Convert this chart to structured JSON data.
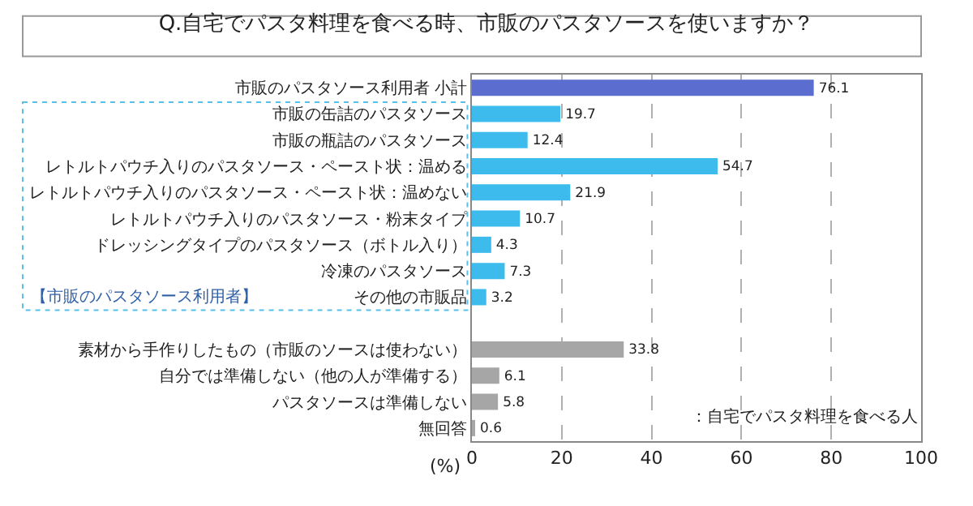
{
  "chart_data": {
    "type": "bar",
    "orientation": "horizontal",
    "title": "Q.自宅でパスタ料理を食べる時、市販のパスタソースを使いますか？",
    "categories": [
      "市販のパスタソース利用者 小計",
      "市販の缶詰のパスタソース",
      "市販の瓶詰のパスタソース",
      "レトルトパウチ入りのパスタソース・ペースト状：温める",
      "レトルトパウチ入りのパスタソース・ペースト状：温めない",
      "レトルトパウチ入りのパスタソース・粉末タイプ",
      "ドレッシングタイプのパスタソース（ボトル入り）",
      "冷凍のパスタソース",
      "その他の市販品",
      null,
      "素材から手作りしたもの（市販のソースは使わない）",
      "自分では準備しない（他の人が準備する）",
      "パスタソースは準備しない",
      "無回答"
    ],
    "values": [
      76.1,
      19.7,
      12.4,
      54.7,
      21.9,
      10.7,
      4.3,
      7.3,
      3.2,
      null,
      33.8,
      6.1,
      5.8,
      0.6
    ],
    "colors": [
      "#5b6ed0",
      "#3dbbed",
      "#3dbbed",
      "#3dbbed",
      "#3dbbed",
      "#3dbbed",
      "#3dbbed",
      "#3dbbed",
      "#3dbbed",
      null,
      "#a6a6a6",
      "#a6a6a6",
      "#a6a6a6",
      "#a6a6a6"
    ],
    "xlim": [
      0,
      100
    ],
    "xticks": [
      0,
      20,
      40,
      60,
      80,
      100
    ],
    "xlabel": "(%)",
    "annotations": [
      "【市販のパスタソース利用者】",
      "：自宅でパスタ料理を食べる人"
    ],
    "data_labels": true,
    "grid": "x"
  }
}
